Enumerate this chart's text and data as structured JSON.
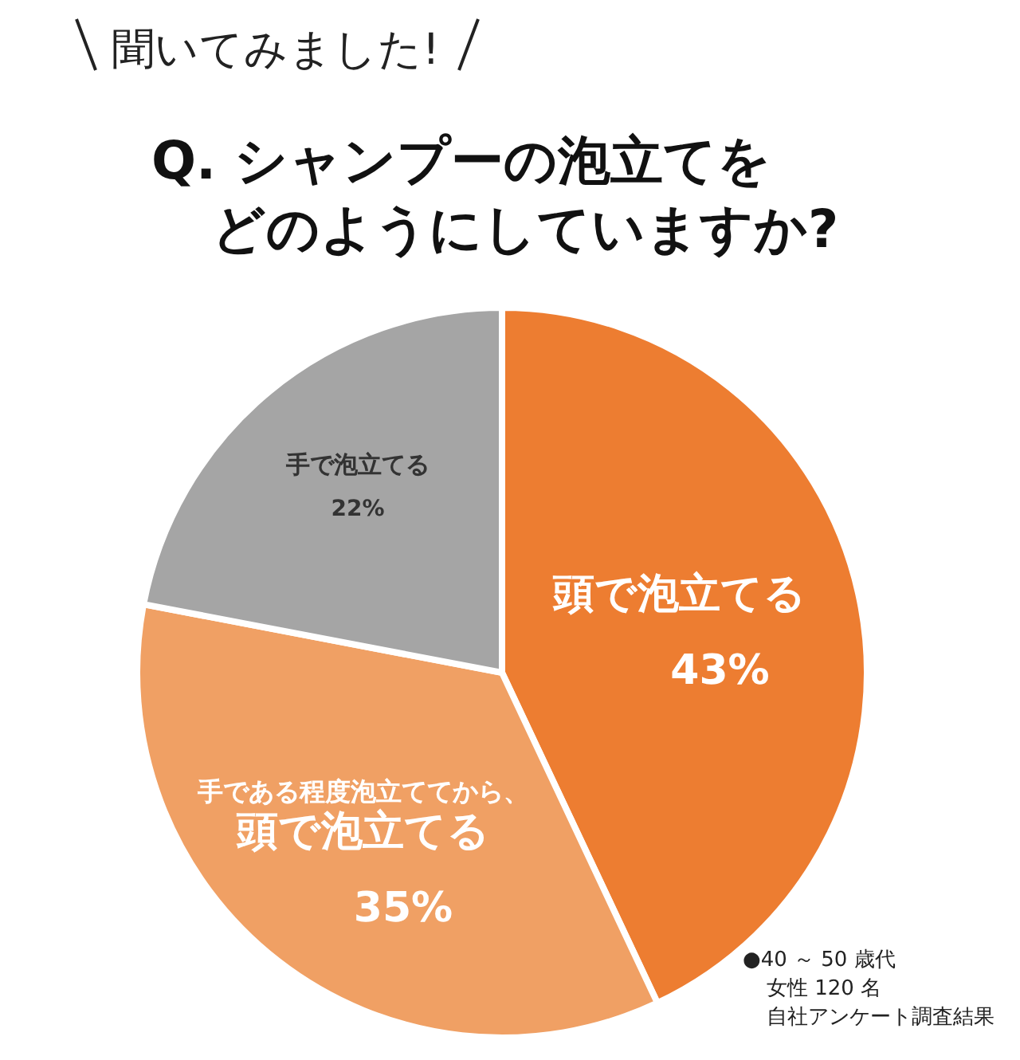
{
  "chart_data": {
    "type": "pie",
    "subtitle": "聞いてみました!",
    "title": "Q. シャンプーの泡立てをどのようにしていますか?",
    "categories": [
      "頭で泡立てる",
      "手である程度泡立ててから、頭で泡立てる",
      "手で泡立てる"
    ],
    "values": [
      43,
      35,
      22
    ],
    "value_labels": [
      "43%",
      "35%",
      "22%"
    ],
    "colors": [
      "#ed7d31",
      "#f0a064",
      "#a5a5a5"
    ],
    "annotations": [
      "●40 ～ 50 歳代",
      "女性 120 名",
      "自社アンケート調査結果"
    ]
  }
}
